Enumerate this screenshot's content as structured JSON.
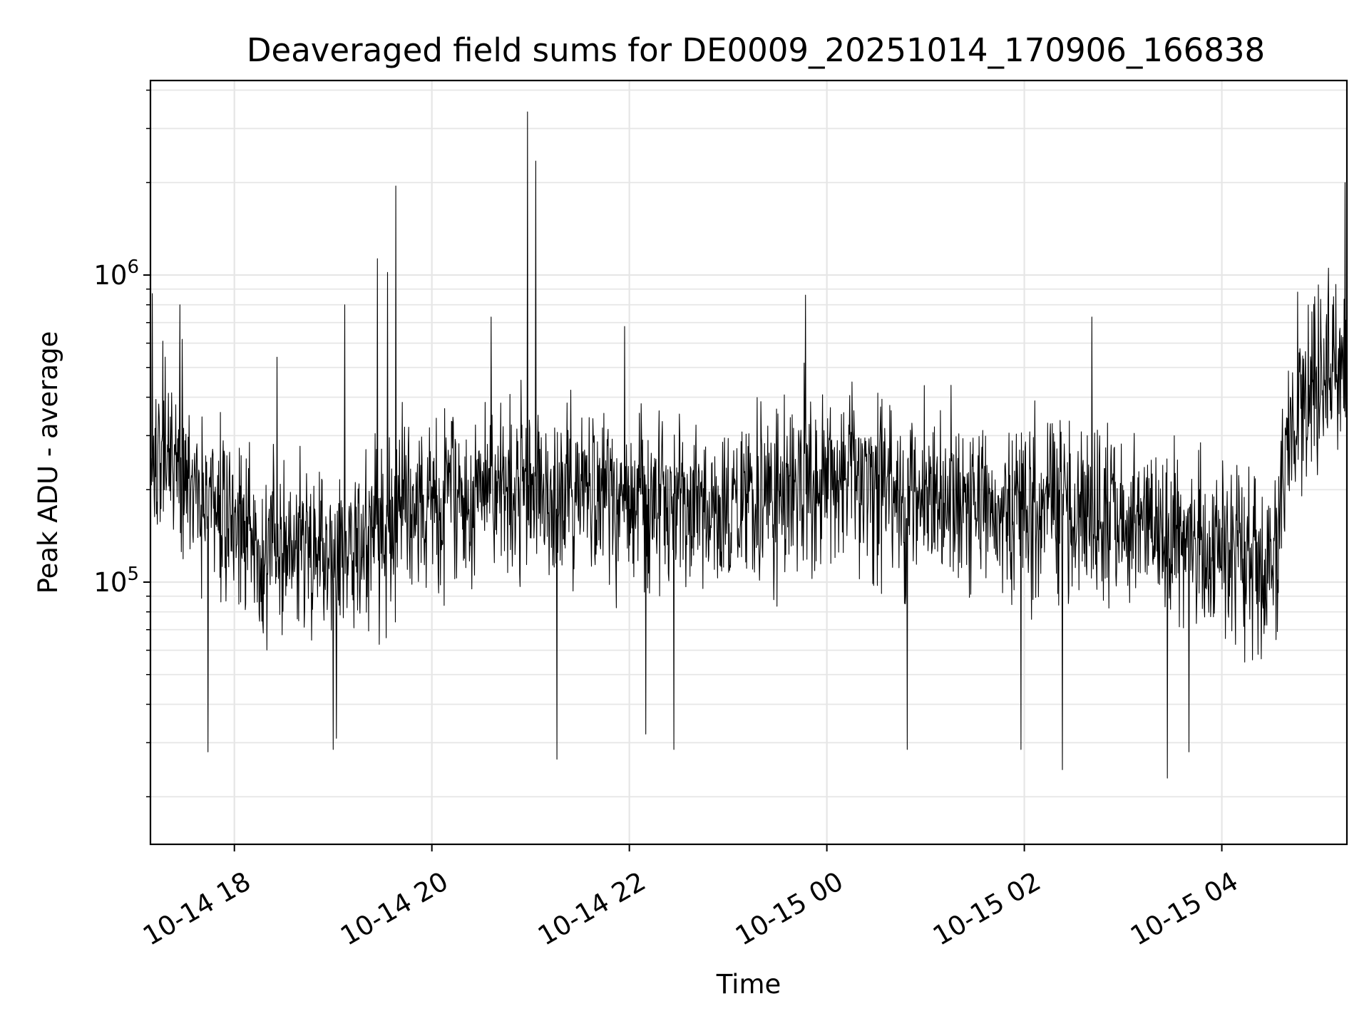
{
  "chart_data": {
    "type": "line",
    "title": "Deaveraged field sums for DE0009_20251014_170906_166838",
    "xlabel": "Time",
    "ylabel": "Peak ADU - average",
    "yscale": "log",
    "grid": true,
    "line_color": "#000000",
    "grid_color": "#e6e6e6",
    "xlim": [
      "2025-10-14 17:09",
      "2025-10-15 05:16"
    ],
    "ylim": [
      14000,
      4300000
    ],
    "x_ticks": [
      {
        "value": "2025-10-14 18:00",
        "label": "10-14 18"
      },
      {
        "value": "2025-10-14 20:00",
        "label": "10-14 20"
      },
      {
        "value": "2025-10-14 22:00",
        "label": "10-14 22"
      },
      {
        "value": "2025-10-15 00:00",
        "label": "10-15 00"
      },
      {
        "value": "2025-10-15 02:00",
        "label": "10-15 02"
      },
      {
        "value": "2025-10-15 04:00",
        "label": "10-15 04"
      }
    ],
    "y_ticks": [
      {
        "value": 100000,
        "base": "10",
        "exp": "5"
      },
      {
        "value": 1000000,
        "base": "10",
        "exp": "6"
      }
    ],
    "series": [
      {
        "trend": {
          "x": [
            "2025-10-14 17:09",
            "2025-10-14 17:30",
            "2025-10-14 18:00",
            "2025-10-14 18:30",
            "2025-10-14 19:00",
            "2025-10-14 19:30",
            "2025-10-14 20:00",
            "2025-10-14 21:00",
            "2025-10-14 22:00",
            "2025-10-14 23:00",
            "2025-10-15 00:00",
            "2025-10-15 01:00",
            "2025-10-15 02:00",
            "2025-10-15 03:00",
            "2025-10-15 03:30",
            "2025-10-15 04:00",
            "2025-10-15 04:30",
            "2025-10-15 04:40",
            "2025-10-15 05:00",
            "2025-10-15 05:16"
          ],
          "y": [
            260000,
            220000,
            150000,
            140000,
            120000,
            150000,
            190000,
            200000,
            190000,
            180000,
            210000,
            190000,
            180000,
            160000,
            150000,
            130000,
            100000,
            280000,
            460000,
            560000
          ]
        },
        "peaks": [
          {
            "x": "2025-10-14 17:10",
            "y": 870000
          },
          {
            "x": "2025-10-14 17:27",
            "y": 800000
          },
          {
            "x": "2025-10-14 18:26",
            "y": 540000
          },
          {
            "x": "2025-10-14 19:07",
            "y": 800000
          },
          {
            "x": "2025-10-14 19:27",
            "y": 1130000
          },
          {
            "x": "2025-10-14 19:33",
            "y": 1020000
          },
          {
            "x": "2025-10-14 19:38",
            "y": 1950000
          },
          {
            "x": "2025-10-14 20:36",
            "y": 730000
          },
          {
            "x": "2025-10-14 20:58",
            "y": 3400000
          },
          {
            "x": "2025-10-14 21:03",
            "y": 2350000
          },
          {
            "x": "2025-10-14 21:57",
            "y": 680000
          },
          {
            "x": "2025-10-14 23:47",
            "y": 860000
          },
          {
            "x": "2025-10-15 02:41",
            "y": 730000
          },
          {
            "x": "2025-10-15 04:46",
            "y": 880000
          },
          {
            "x": "2025-10-15 05:15",
            "y": 2000000
          }
        ],
        "dips": [
          {
            "x": "2025-10-14 17:44",
            "y": 28000
          },
          {
            "x": "2025-10-14 19:00",
            "y": 28500
          },
          {
            "x": "2025-10-14 19:02",
            "y": 31000
          },
          {
            "x": "2025-10-14 21:16",
            "y": 26500
          },
          {
            "x": "2025-10-14 22:10",
            "y": 32000
          },
          {
            "x": "2025-10-14 22:27",
            "y": 28500
          },
          {
            "x": "2025-10-15 00:49",
            "y": 28500
          },
          {
            "x": "2025-10-15 01:58",
            "y": 28500
          },
          {
            "x": "2025-10-15 02:23",
            "y": 24500
          },
          {
            "x": "2025-10-15 03:27",
            "y": 23000
          },
          {
            "x": "2025-10-15 03:40",
            "y": 28000
          }
        ]
      }
    ]
  }
}
